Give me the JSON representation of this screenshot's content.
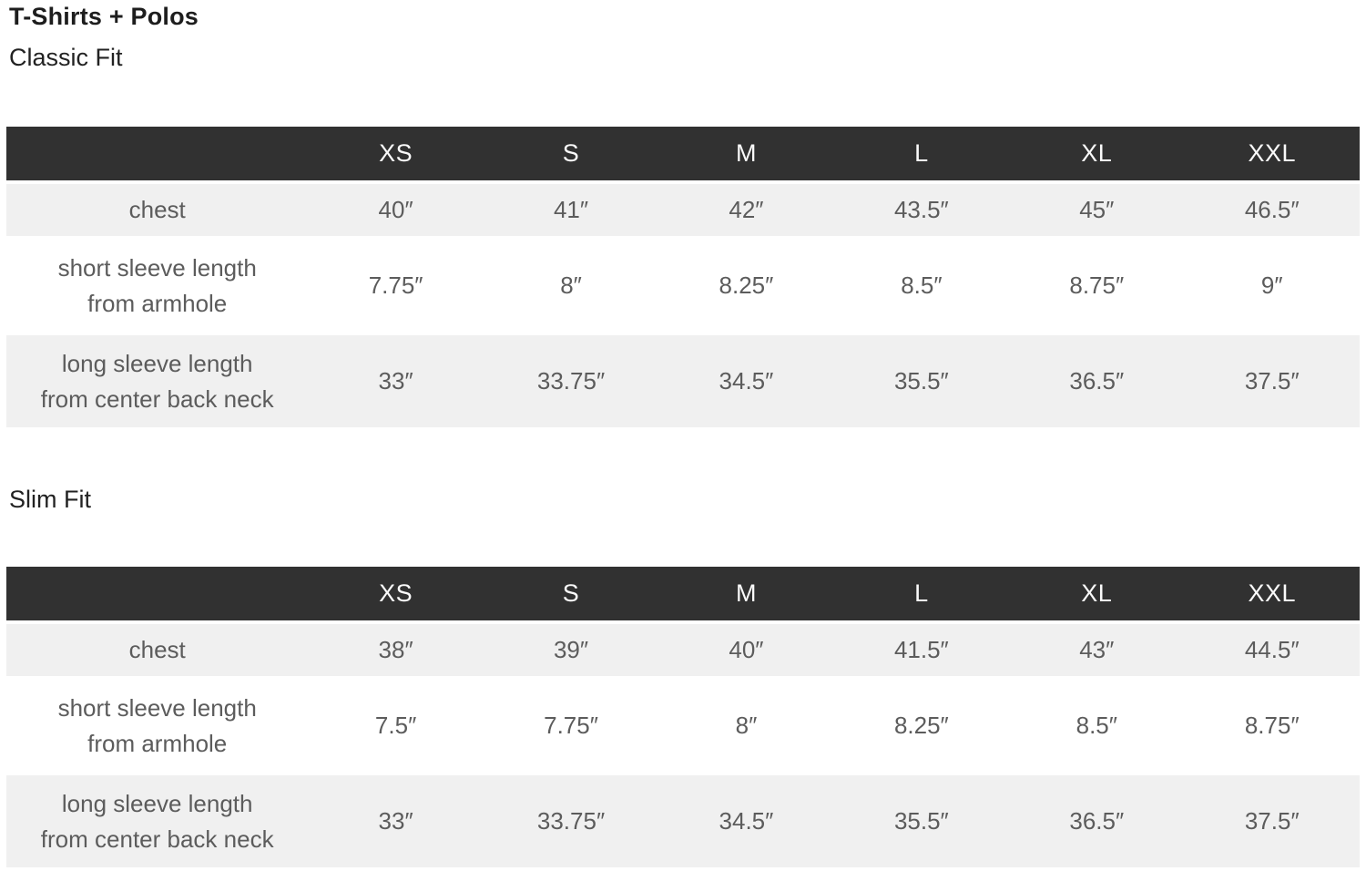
{
  "page_title": "T-Shirts + Polos",
  "sections": [
    {
      "title": "Classic Fit",
      "columns": [
        "XS",
        "S",
        "M",
        "L",
        "XL",
        "XXL"
      ],
      "rows": [
        {
          "label_line1": "chest",
          "label_line2": "",
          "values": [
            "40″",
            "41″",
            "42″",
            "43.5″",
            "45″",
            "46.5″"
          ]
        },
        {
          "label_line1": "short sleeve length",
          "label_line2": "from armhole",
          "values": [
            "7.75″",
            "8″",
            "8.25″",
            "8.5″",
            "8.75″",
            "9″"
          ]
        },
        {
          "label_line1": "long sleeve length",
          "label_line2": "from center back neck",
          "values": [
            "33″",
            "33.75″",
            "34.5″",
            "35.5″",
            "36.5″",
            "37.5″"
          ]
        }
      ]
    },
    {
      "title": "Slim Fit",
      "columns": [
        "XS",
        "S",
        "M",
        "L",
        "XL",
        "XXL"
      ],
      "rows": [
        {
          "label_line1": "chest",
          "label_line2": "",
          "values": [
            "38″",
            "39″",
            "40″",
            "41.5″",
            "43″",
            "44.5″"
          ]
        },
        {
          "label_line1": "short sleeve length",
          "label_line2": "from armhole",
          "values": [
            "7.5″",
            "7.75″",
            "8″",
            "8.25″",
            "8.5″",
            "8.75″"
          ]
        },
        {
          "label_line1": "long sleeve length",
          "label_line2": "from center back neck",
          "values": [
            "33″",
            "33.75″",
            "34.5″",
            "35.5″",
            "36.5″",
            "37.5″"
          ]
        }
      ]
    }
  ],
  "colors": {
    "header_bg": "#313131",
    "header_text": "#fafafa",
    "row_alt_bg": "#f0f0f0",
    "cell_text": "#5c5c5c",
    "title_text": "#1d1d1d"
  }
}
